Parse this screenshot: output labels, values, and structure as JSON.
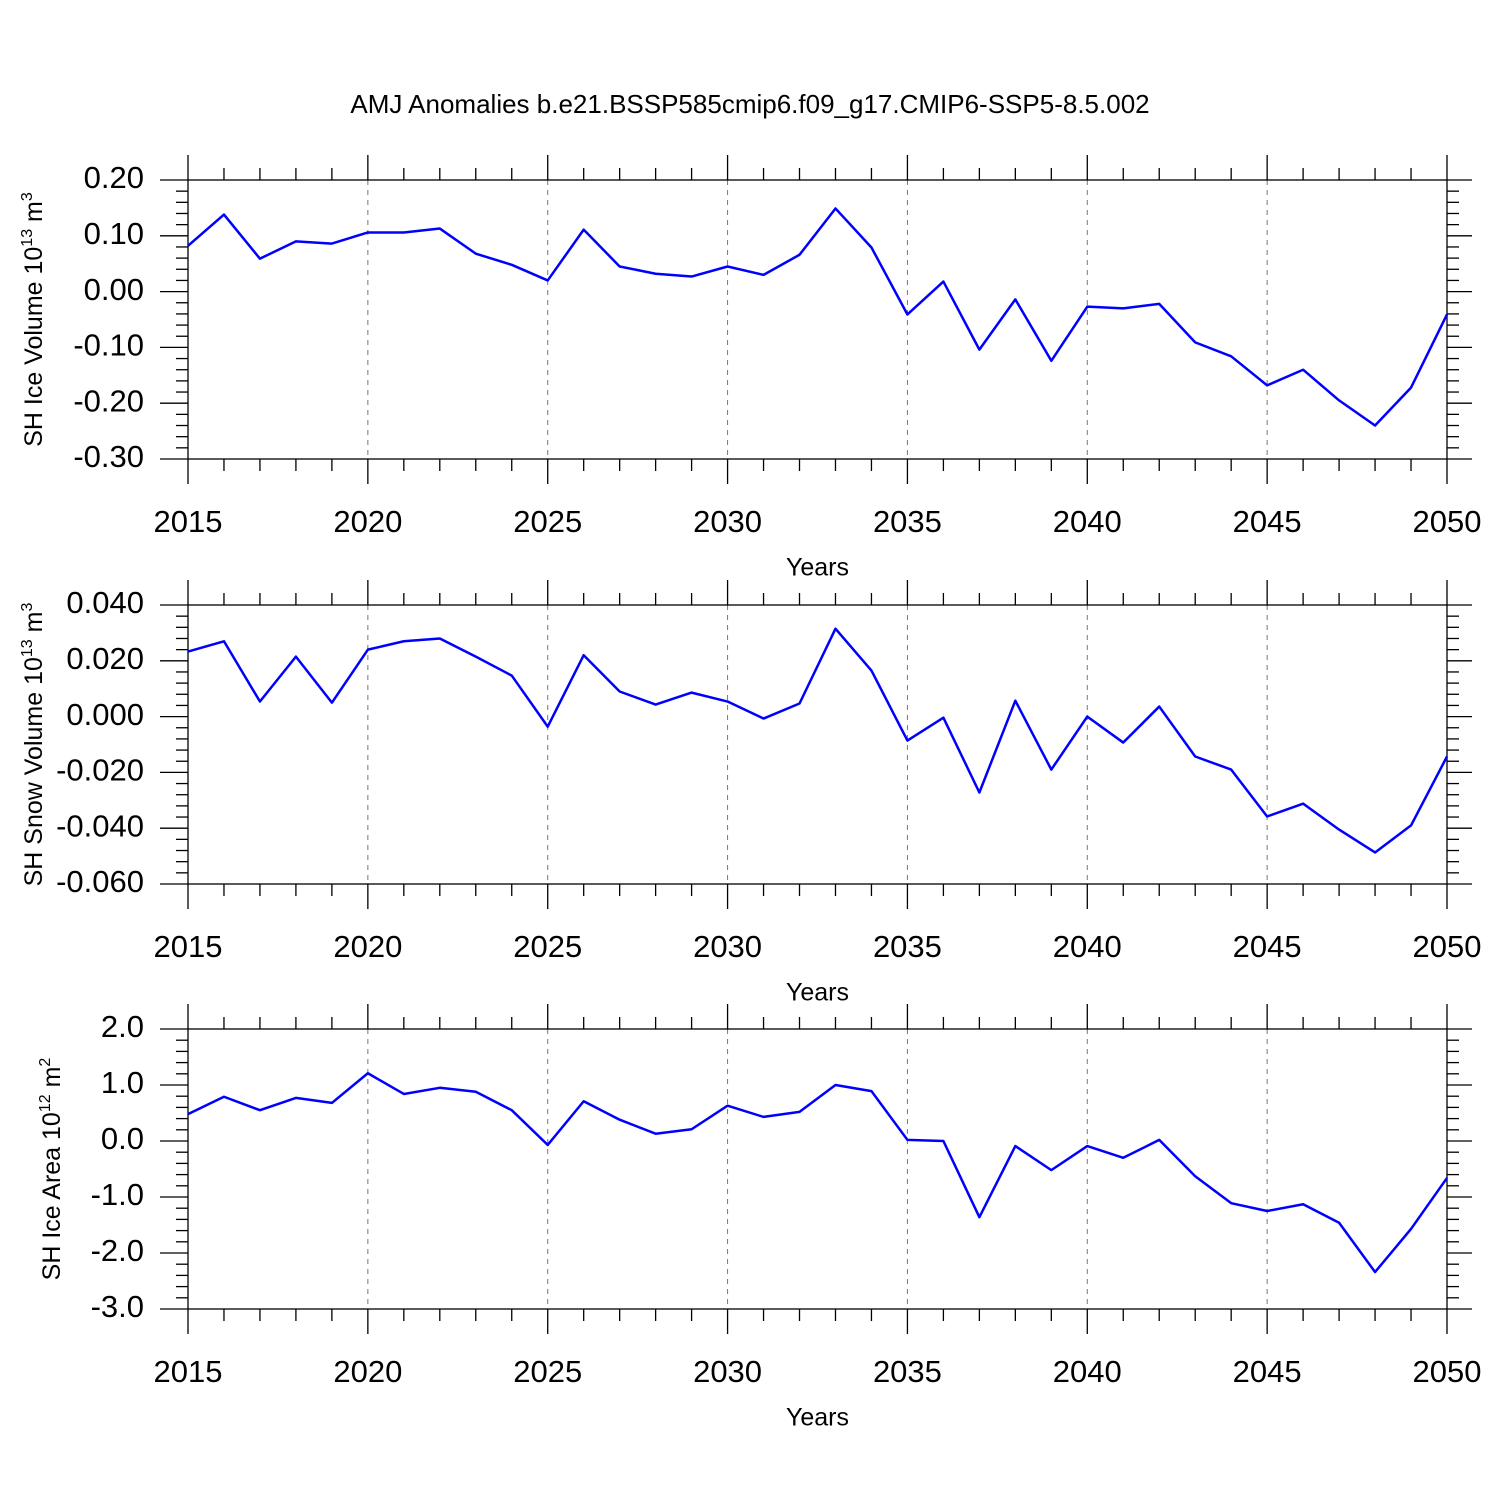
{
  "title": "AMJ Anomalies b.e21.BSSP585cmip6.f09_g17.CMIP6-SSP5-8.5.002",
  "chart_data": [
    {
      "type": "line",
      "ylabel": {
        "base": "SH Ice Volume 10",
        "exp": "13",
        "unit": " m",
        "unit_exp": "3"
      },
      "xlabel": "Years",
      "x": [
        2015,
        2016,
        2017,
        2018,
        2019,
        2020,
        2021,
        2022,
        2023,
        2024,
        2025,
        2026,
        2027,
        2028,
        2029,
        2030,
        2031,
        2032,
        2033,
        2034,
        2035,
        2036,
        2037,
        2038,
        2039,
        2040,
        2041,
        2042,
        2043,
        2044,
        2045,
        2046,
        2047,
        2048,
        2049,
        2050
      ],
      "series": [
        {
          "color": "#0000ff",
          "values": [
            0.082,
            0.138,
            0.059,
            0.09,
            0.086,
            0.106,
            0.106,
            0.113,
            0.068,
            0.048,
            0.02,
            0.111,
            0.045,
            0.032,
            0.027,
            0.045,
            0.03,
            0.066,
            0.149,
            0.079,
            -0.041,
            0.018,
            -0.104,
            -0.014,
            -0.124,
            -0.027,
            -0.03,
            -0.022,
            -0.091,
            -0.116,
            -0.168,
            -0.14,
            -0.195,
            -0.24,
            -0.172,
            -0.041
          ]
        }
      ],
      "xlim": [
        2015,
        2050
      ],
      "xticks": [
        2015,
        2020,
        2025,
        2030,
        2035,
        2040,
        2045,
        2050
      ],
      "ylim": [
        -0.3,
        0.2
      ],
      "yticks": [
        {
          "value": 0.2,
          "label": "0.20"
        },
        {
          "value": 0.1,
          "label": "0.10"
        },
        {
          "value": 0,
          "label": "0.00"
        },
        {
          "value": -0.1,
          "label": "-0.10"
        },
        {
          "value": -0.2,
          "label": "-0.20"
        },
        {
          "value": -0.3,
          "label": "-0.30"
        }
      ],
      "xgrid": true
    },
    {
      "type": "line",
      "ylabel": {
        "base": "SH Snow Volume 10",
        "exp": "13",
        "unit": " m",
        "unit_exp": "3"
      },
      "xlabel": "Years",
      "x": [
        2015,
        2016,
        2017,
        2018,
        2019,
        2020,
        2021,
        2022,
        2023,
        2024,
        2025,
        2026,
        2027,
        2028,
        2029,
        2030,
        2031,
        2032,
        2033,
        2034,
        2035,
        2036,
        2037,
        2038,
        2039,
        2040,
        2041,
        2042,
        2043,
        2044,
        2045,
        2046,
        2047,
        2048,
        2049,
        2050
      ],
      "series": [
        {
          "color": "#0000ff",
          "values": [
            0.0233,
            0.027,
            0.0054,
            0.0215,
            0.005,
            0.024,
            0.027,
            0.028,
            0.0215,
            0.0147,
            -0.0036,
            0.022,
            0.009,
            0.0043,
            0.0086,
            0.0054,
            -0.0007,
            0.0047,
            0.0315,
            0.0165,
            -0.0086,
            -0.0004,
            -0.0272,
            0.0057,
            -0.019,
            0.0,
            -0.0093,
            0.0036,
            -0.0143,
            -0.019,
            -0.0358,
            -0.0312,
            -0.0405,
            -0.0487,
            -0.039,
            -0.0143
          ]
        }
      ],
      "xlim": [
        2015,
        2050
      ],
      "xticks": [
        2015,
        2020,
        2025,
        2030,
        2035,
        2040,
        2045,
        2050
      ],
      "ylim": [
        -0.06,
        0.04
      ],
      "yticks": [
        {
          "value": 0.04,
          "label": "0.040"
        },
        {
          "value": 0.02,
          "label": "0.020"
        },
        {
          "value": 0,
          "label": "0.000"
        },
        {
          "value": -0.02,
          "label": "-0.020"
        },
        {
          "value": -0.04,
          "label": "-0.040"
        },
        {
          "value": -0.06,
          "label": "-0.060"
        }
      ],
      "xgrid": true
    },
    {
      "type": "line",
      "ylabel": {
        "base": "SH Ice Area 10",
        "exp": "12",
        "unit": " m",
        "unit_exp": "2"
      },
      "xlabel": "Years",
      "x": [
        2015,
        2016,
        2017,
        2018,
        2019,
        2020,
        2021,
        2022,
        2023,
        2024,
        2025,
        2026,
        2027,
        2028,
        2029,
        2030,
        2031,
        2032,
        2033,
        2034,
        2035,
        2036,
        2037,
        2038,
        2039,
        2040,
        2041,
        2042,
        2043,
        2044,
        2045,
        2046,
        2047,
        2048,
        2049,
        2050
      ],
      "series": [
        {
          "color": "#0000ff",
          "values": [
            0.48,
            0.79,
            0.55,
            0.77,
            0.68,
            1.21,
            0.84,
            0.95,
            0.88,
            0.55,
            -0.07,
            0.71,
            0.38,
            0.13,
            0.21,
            0.63,
            0.43,
            0.52,
            1.0,
            0.89,
            0.02,
            0.0,
            -1.36,
            -0.09,
            -0.52,
            -0.09,
            -0.3,
            0.02,
            -0.63,
            -1.11,
            -1.25,
            -1.13,
            -1.46,
            -2.34,
            -1.57,
            -0.66
          ]
        }
      ],
      "xlim": [
        2015,
        2050
      ],
      "xticks": [
        2015,
        2020,
        2025,
        2030,
        2035,
        2040,
        2045,
        2050
      ],
      "ylim": [
        -3,
        2
      ],
      "yticks": [
        {
          "value": 2,
          "label": "2.0"
        },
        {
          "value": 1,
          "label": "1.0"
        },
        {
          "value": 0,
          "label": "0.0"
        },
        {
          "value": -1,
          "label": "-1.0"
        },
        {
          "value": -2,
          "label": "-2.0"
        },
        {
          "value": -3,
          "label": "-3.0"
        }
      ],
      "xgrid": true
    }
  ]
}
